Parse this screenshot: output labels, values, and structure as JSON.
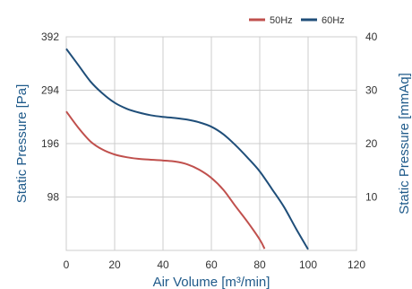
{
  "chart_data": {
    "type": "line",
    "xlabel": "Air Volume [m³/min]",
    "ylabel": "Static Pressure [Pa]",
    "y2label": "Static Pressure [mmAq]",
    "x_ticks": [
      "0",
      "20",
      "40",
      "60",
      "80",
      "100",
      "120"
    ],
    "y_ticks": [
      "98",
      "196",
      "294",
      "392"
    ],
    "y2_ticks": [
      "10",
      "20",
      "30",
      "40"
    ],
    "xlim": [
      0,
      120
    ],
    "ylim": [
      0,
      392
    ],
    "y2lim": [
      0,
      40
    ],
    "grid": true,
    "legend_position": "top-right",
    "colors": {
      "axis_title": "#1f5a8a",
      "tick": "#333333"
    },
    "series": [
      {
        "name": "50Hz",
        "color": "#c0504d",
        "x": [
          0,
          5,
          10,
          15,
          20,
          25,
          30,
          40,
          45,
          50,
          55,
          60,
          65,
          70,
          75,
          80,
          82
        ],
        "y": [
          255,
          225,
          200,
          185,
          176,
          171,
          168,
          165,
          163,
          158,
          148,
          133,
          111,
          81,
          52,
          20,
          3
        ]
      },
      {
        "name": "60Hz",
        "color": "#1f4e79",
        "x": [
          0,
          5,
          10,
          15,
          20,
          25,
          30,
          35,
          40,
          45,
          50,
          55,
          60,
          65,
          70,
          75,
          80,
          85,
          90,
          95,
          100
        ],
        "y": [
          370,
          340,
          310,
          288,
          271,
          260,
          253,
          248,
          245,
          243,
          240,
          235,
          227,
          213,
          193,
          170,
          145,
          113,
          80,
          40,
          2
        ]
      }
    ]
  }
}
